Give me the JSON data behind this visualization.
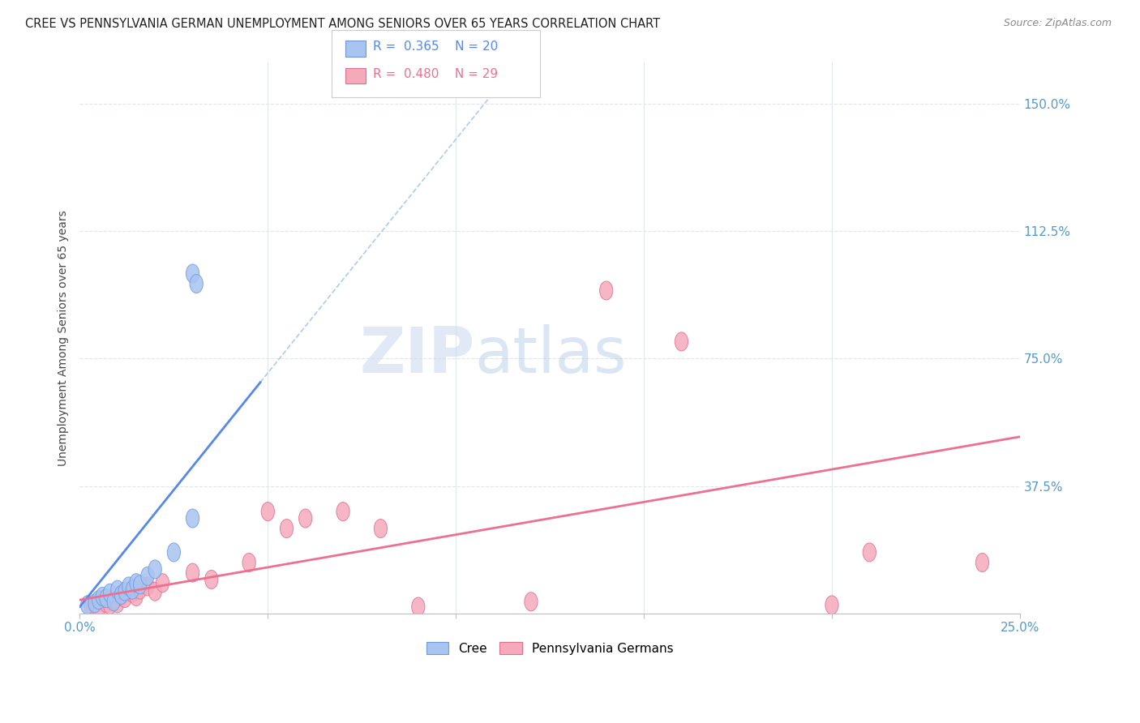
{
  "title": "CREE VS PENNSYLVANIA GERMAN UNEMPLOYMENT AMONG SENIORS OVER 65 YEARS CORRELATION CHART",
  "source": "Source: ZipAtlas.com",
  "ylabel": "Unemployment Among Seniors over 65 years",
  "yticks": [
    0,
    37.5,
    75.0,
    112.5,
    150.0
  ],
  "ytick_labels": [
    "",
    "37.5%",
    "75.0%",
    "112.5%",
    "150.0%"
  ],
  "xlim": [
    0,
    25
  ],
  "ylim": [
    0,
    162
  ],
  "cree_color": "#A8C4F0",
  "cree_edge": "#7099DD",
  "pg_color": "#F5AABB",
  "pg_edge": "#E07090",
  "regression_blue": "#5588EE",
  "regression_pink": "#EE7090",
  "dashed_color": "#AACCEE",
  "watermark_color": "#DDE8F5",
  "background_color": "#FFFFFF",
  "grid_color": "#E0E5EE",
  "tick_color": "#5599CC",
  "cree_line_x0": 0.0,
  "cree_line_y0": 2.0,
  "cree_line_x1": 4.8,
  "cree_line_y1": 68.0,
  "pg_line_x0": 0.0,
  "pg_line_y0": 4.0,
  "pg_line_x1": 25.0,
  "pg_line_y1": 52.0,
  "cree_points": [
    [
      0.2,
      2.5
    ],
    [
      0.4,
      3.0
    ],
    [
      0.5,
      4.0
    ],
    [
      0.6,
      5.0
    ],
    [
      0.7,
      4.5
    ],
    [
      0.8,
      6.0
    ],
    [
      0.9,
      3.5
    ],
    [
      1.0,
      7.0
    ],
    [
      1.1,
      5.5
    ],
    [
      1.2,
      6.5
    ],
    [
      1.3,
      8.0
    ],
    [
      1.4,
      7.0
    ],
    [
      1.5,
      9.0
    ],
    [
      1.6,
      8.5
    ],
    [
      1.8,
      11.0
    ],
    [
      2.0,
      13.0
    ],
    [
      2.5,
      18.0
    ],
    [
      3.0,
      28.0
    ],
    [
      3.0,
      100.0
    ],
    [
      3.1,
      97.0
    ]
  ],
  "pg_points": [
    [
      0.3,
      2.0
    ],
    [
      0.5,
      1.5
    ],
    [
      0.7,
      3.0
    ],
    [
      0.8,
      2.5
    ],
    [
      0.9,
      4.0
    ],
    [
      1.0,
      3.0
    ],
    [
      1.1,
      5.0
    ],
    [
      1.2,
      4.5
    ],
    [
      1.4,
      6.0
    ],
    [
      1.5,
      5.0
    ],
    [
      1.6,
      7.0
    ],
    [
      1.8,
      8.0
    ],
    [
      2.0,
      6.5
    ],
    [
      2.2,
      9.0
    ],
    [
      3.0,
      12.0
    ],
    [
      3.5,
      10.0
    ],
    [
      4.5,
      15.0
    ],
    [
      5.0,
      30.0
    ],
    [
      5.5,
      25.0
    ],
    [
      6.0,
      28.0
    ],
    [
      7.0,
      30.0
    ],
    [
      8.0,
      25.0
    ],
    [
      9.0,
      2.0
    ],
    [
      12.0,
      3.5
    ],
    [
      14.0,
      95.0
    ],
    [
      16.0,
      80.0
    ],
    [
      20.0,
      2.5
    ],
    [
      21.0,
      18.0
    ],
    [
      24.0,
      15.0
    ]
  ]
}
